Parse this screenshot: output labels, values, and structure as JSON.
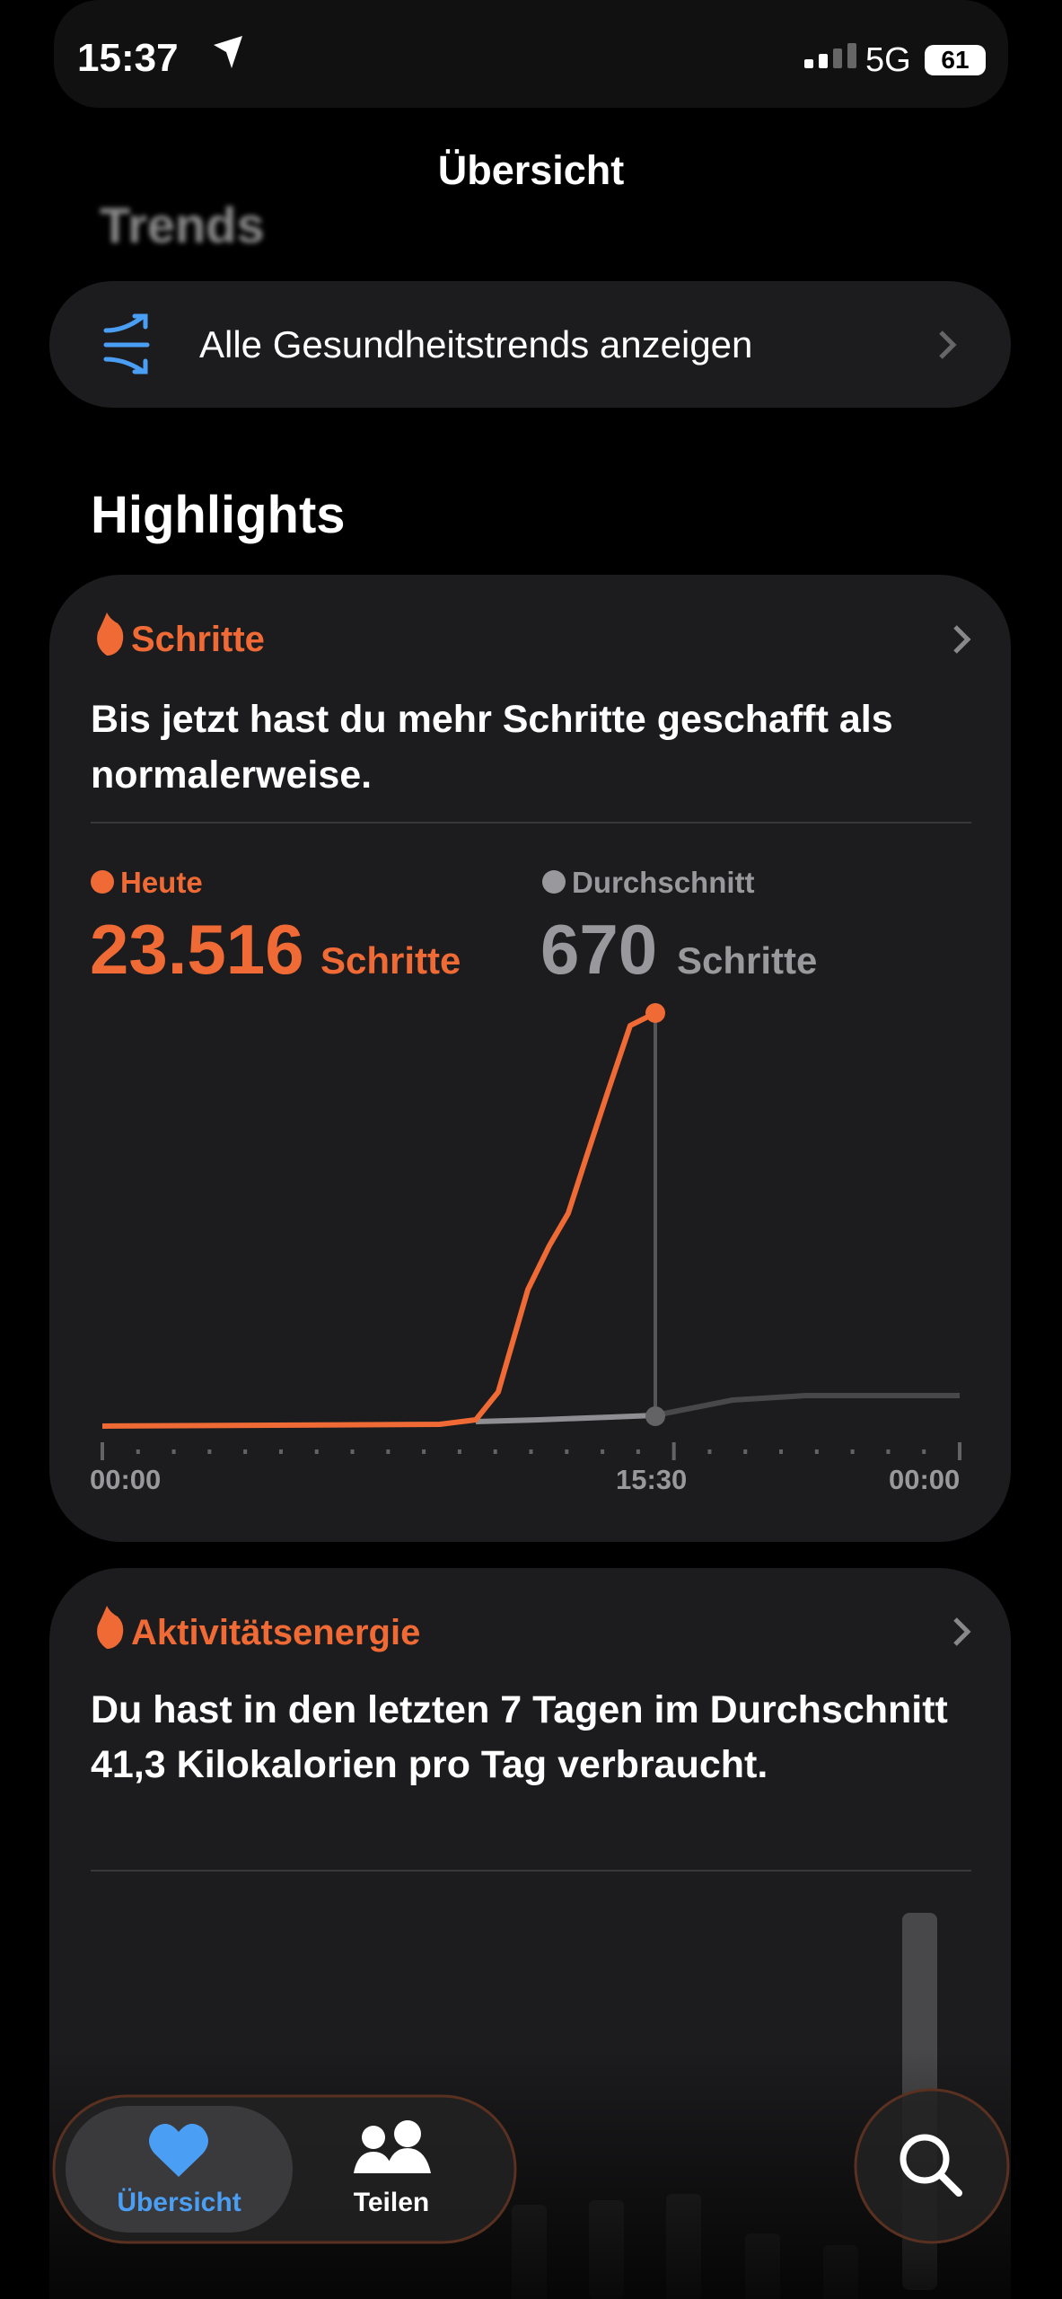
{
  "status_bar": {
    "time": "15:37",
    "network": "5G",
    "battery": "61"
  },
  "nav": {
    "title": "Übersicht"
  },
  "trends": {
    "heading": "Trends",
    "link": "Alle Gesundheitstrends anzeigen"
  },
  "highlights": {
    "heading": "Highlights",
    "cards": [
      {
        "title": "Schritte",
        "text": "Bis jetzt hast du mehr Schritte geschafft als normalerweise.",
        "today": {
          "label": "Heute",
          "value": "23.516",
          "unit": "Schritte"
        },
        "average": {
          "label": "Durchschnitt",
          "value": "670",
          "unit": "Schritte"
        },
        "x_labels": [
          "00:00",
          "15:30",
          "00:00"
        ]
      },
      {
        "title": "Aktivitätsenergie",
        "text": "Du hast in den letzten 7 Tagen im Durchschnitt 41,3 Kilokalorien pro Tag verbraucht."
      }
    ]
  },
  "tab_bar": {
    "tabs": [
      "Übersicht",
      "Teilen"
    ]
  }
}
